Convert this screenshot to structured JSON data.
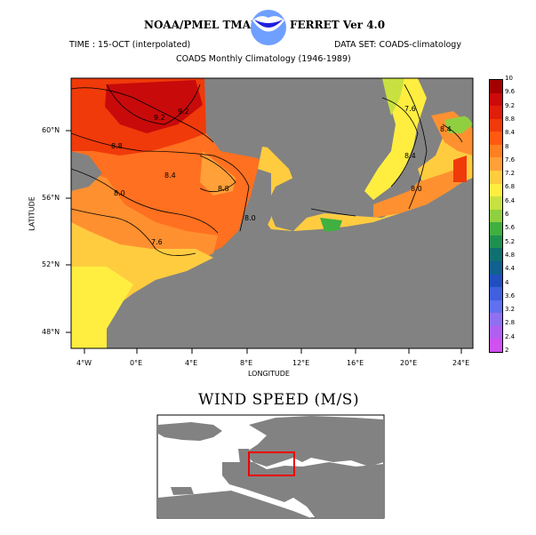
{
  "header": {
    "left_title": "NOAA/PMEL TMAP",
    "right_title": "FERRET Ver 4.0",
    "time_label": "TIME : 15-OCT (interpolated)",
    "dataset_label": "DATA SET: COADS-climatology",
    "subtitle": "COADS Monthly Climatology (1946-1989)",
    "logo_icon": "noaa-logo-icon"
  },
  "map": {
    "ylabel": "LATITUDE",
    "xlabel": "LONGITUDE",
    "x_ticks": [
      "4°W",
      "0°E",
      "4°E",
      "8°E",
      "12°E",
      "16°E",
      "20°E",
      "24°E"
    ],
    "y_ticks": [
      "60°N",
      "56°N",
      "52°N",
      "48°N"
    ],
    "x_range": [
      -5,
      25.5
    ],
    "y_range": [
      47,
      63.4
    ],
    "land_color": "#828282",
    "contour_labels": [
      "9.2",
      "9.2",
      "8.8",
      "8.4",
      "8.8",
      "8.0",
      "7.6",
      "8.0",
      "8.4",
      "7.6",
      "8.0",
      "8.4"
    ]
  },
  "colorbar": {
    "labels": [
      "10",
      "9.6",
      "9.2",
      "8.8",
      "8.4",
      "8",
      "7.6",
      "7.2",
      "6.8",
      "6.4",
      "6",
      "5.6",
      "5.2",
      "4.8",
      "4.4",
      "4",
      "3.6",
      "3.2",
      "2.8",
      "2.4",
      "2"
    ],
    "colors": [
      "#a50000",
      "#cc0a0a",
      "#e01e0a",
      "#f03a0a",
      "#ff5a10",
      "#ff8020",
      "#ffa038",
      "#ffcc40",
      "#ffee40",
      "#c8e040",
      "#90d040",
      "#40b040",
      "#209050",
      "#107070",
      "#106090",
      "#2050c0",
      "#4060e0",
      "#6070f0",
      "#9070f0",
      "#b060f0",
      "#d050f0"
    ]
  },
  "bottom_title": "WIND SPEED (M/S)",
  "inset": {
    "highlight_color": "#ee0000"
  }
}
